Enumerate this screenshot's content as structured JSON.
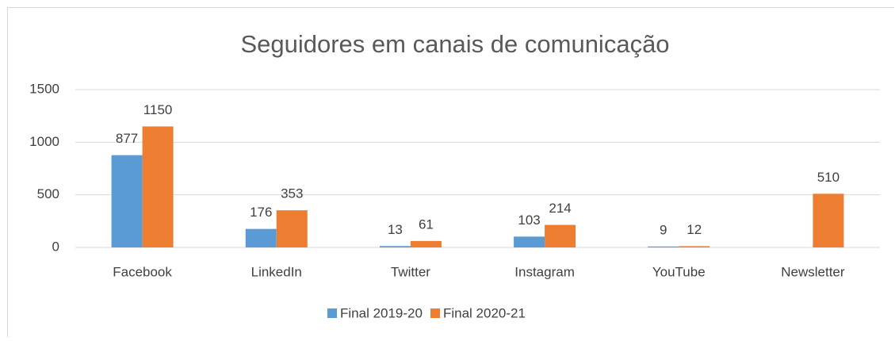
{
  "chart_data": {
    "type": "bar",
    "title": "Seguidores em canais de comunicação",
    "categories": [
      "Facebook",
      "LinkedIn",
      "Twitter",
      "Instagram",
      "YouTube",
      "Newsletter"
    ],
    "series": [
      {
        "name": "Final 2019-20",
        "color": "#5b9bd5",
        "values": [
          877,
          176,
          13,
          103,
          9,
          null
        ]
      },
      {
        "name": "Final 2020-21",
        "color": "#ed7d31",
        "values": [
          1150,
          353,
          61,
          214,
          12,
          510
        ]
      }
    ],
    "ylim": [
      0,
      1500
    ],
    "yticks": [
      0,
      500,
      1000,
      1500
    ],
    "grid": true,
    "legend": "bottom"
  }
}
